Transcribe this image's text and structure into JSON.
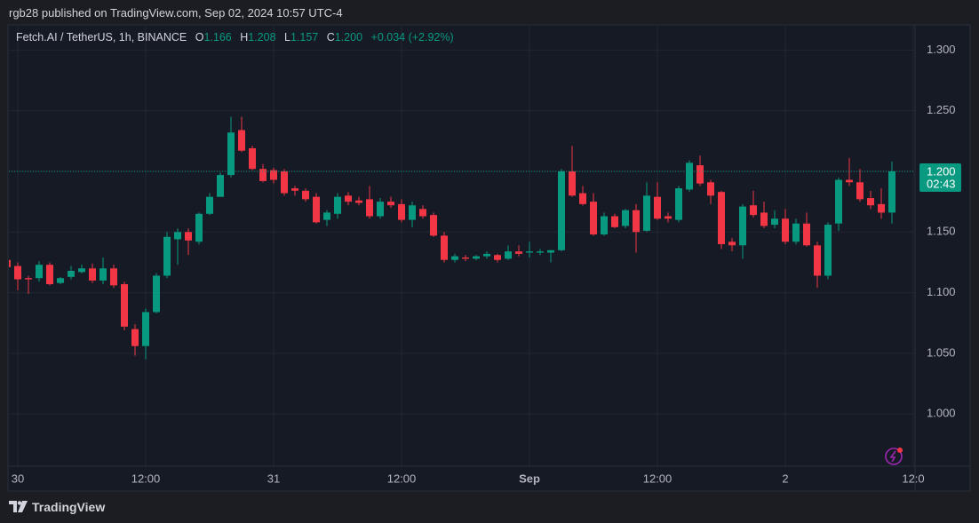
{
  "header": {
    "publisher": "rgb28 published on TradingView.com, Sep 02, 2024 10:57 UTC-4"
  },
  "legend": {
    "symbol": "Fetch.AI / TetherUS, 1h, BINANCE",
    "o_label": "O",
    "o": "1.166",
    "h_label": "H",
    "h": "1.208",
    "l_label": "L",
    "l": "1.157",
    "c_label": "C",
    "c": "1.200",
    "change": "+0.034 (+2.92%)"
  },
  "footer": {
    "brand": "TradingView"
  },
  "chart_data": {
    "type": "candlestick",
    "up_color": "#089981",
    "down_color": "#f23645",
    "grid": true,
    "categories": [
      null,
      "30",
      null,
      null,
      null,
      null,
      null,
      null,
      null,
      null,
      null,
      null,
      null,
      "12:00",
      null,
      null,
      null,
      null,
      null,
      null,
      null,
      null,
      null,
      null,
      null,
      "31",
      null,
      null,
      null,
      null,
      null,
      null,
      null,
      null,
      null,
      null,
      null,
      "12:00",
      null,
      null,
      null,
      null,
      null,
      null,
      null,
      null,
      null,
      null,
      null,
      "Sep",
      null,
      null,
      null,
      null,
      null,
      null,
      null,
      null,
      null,
      null,
      null,
      "12:00",
      null,
      null,
      null,
      null,
      null,
      null,
      null,
      null,
      null,
      null,
      null,
      "2",
      null,
      null,
      null,
      null,
      null,
      null,
      null,
      null,
      null,
      null,
      null,
      "12:0"
    ],
    "open": [
      1.127,
      1.122,
      1.112,
      1.112,
      1.123,
      1.108,
      1.113,
      1.117,
      1.12,
      1.11,
      1.12,
      1.107,
      1.07,
      1.056,
      1.084,
      1.114,
      1.144,
      1.15,
      1.142,
      1.165,
      1.179,
      1.197,
      1.234,
      1.219,
      1.202,
      1.201,
      1.2,
      1.186,
      1.184,
      1.179,
      1.16,
      1.165,
      1.18,
      1.176,
      1.177,
      1.163,
      1.175,
      1.173,
      1.16,
      1.169,
      1.164,
      1.147,
      1.127,
      1.129,
      1.128,
      1.13,
      1.131,
      1.128,
      1.134,
      1.133,
      1.133,
      1.133,
      1.135,
      1.2,
      1.182,
      1.175,
      1.148,
      1.163,
      1.155,
      1.168,
      1.151,
      1.179,
      1.163,
      1.16,
      1.185,
      1.205,
      1.191,
      1.183,
      1.142,
      1.139,
      1.172,
      1.166,
      1.156,
      1.161,
      1.142,
      1.157,
      1.139,
      1.114,
      1.157,
      1.193,
      1.191,
      1.178,
      1.173,
      1.166,
      null,
      null
    ],
    "high": [
      1.13,
      1.125,
      1.114,
      1.126,
      1.125,
      1.113,
      1.122,
      1.123,
      1.124,
      1.129,
      1.123,
      1.109,
      1.074,
      1.087,
      1.116,
      1.15,
      1.153,
      1.153,
      1.166,
      1.182,
      1.199,
      1.245,
      1.245,
      1.221,
      1.206,
      1.203,
      1.202,
      1.188,
      1.186,
      1.182,
      1.168,
      1.182,
      1.183,
      1.179,
      1.188,
      1.178,
      1.179,
      1.177,
      1.175,
      1.172,
      1.166,
      1.15,
      1.132,
      1.131,
      1.131,
      1.134,
      1.132,
      1.139,
      1.139,
      1.142,
      1.136,
      1.135,
      1.202,
      1.221,
      1.188,
      1.182,
      1.166,
      1.165,
      1.169,
      1.173,
      1.191,
      1.191,
      1.166,
      1.188,
      1.209,
      1.213,
      1.193,
      1.184,
      1.145,
      1.173,
      1.184,
      1.175,
      1.168,
      1.169,
      1.161,
      1.166,
      1.142,
      1.158,
      1.195,
      1.211,
      1.202,
      1.184,
      1.186,
      1.208,
      null,
      null
    ],
    "low": [
      1.118,
      1.102,
      1.099,
      1.109,
      1.106,
      1.107,
      1.111,
      1.116,
      1.108,
      1.107,
      1.104,
      1.069,
      1.048,
      1.045,
      1.083,
      1.112,
      1.123,
      1.131,
      1.14,
      1.164,
      1.179,
      1.195,
      1.216,
      1.201,
      1.191,
      1.19,
      1.18,
      1.18,
      1.175,
      1.157,
      1.155,
      1.161,
      1.172,
      1.172,
      1.161,
      1.161,
      1.17,
      1.158,
      1.154,
      1.161,
      1.146,
      1.125,
      1.125,
      1.126,
      1.127,
      1.128,
      1.125,
      1.127,
      1.13,
      1.129,
      1.131,
      1.125,
      1.134,
      1.179,
      1.172,
      1.147,
      1.147,
      1.153,
      1.153,
      1.133,
      1.15,
      1.16,
      1.158,
      1.158,
      1.183,
      1.188,
      1.173,
      1.136,
      1.134,
      1.128,
      1.162,
      1.153,
      1.153,
      1.14,
      1.14,
      1.138,
      1.104,
      1.111,
      1.151,
      1.188,
      1.175,
      1.169,
      1.161,
      1.157,
      null,
      null
    ],
    "close": [
      1.121,
      1.111,
      1.111,
      1.123,
      1.107,
      1.112,
      1.118,
      1.12,
      1.11,
      1.12,
      1.106,
      1.072,
      1.056,
      1.084,
      1.114,
      1.146,
      1.15,
      1.143,
      1.165,
      1.179,
      1.197,
      1.232,
      1.217,
      1.202,
      1.192,
      1.193,
      1.182,
      1.184,
      1.177,
      1.158,
      1.166,
      1.179,
      1.175,
      1.174,
      1.163,
      1.175,
      1.172,
      1.16,
      1.172,
      1.163,
      1.147,
      1.127,
      1.13,
      1.128,
      1.13,
      1.132,
      1.127,
      1.134,
      1.132,
      1.134,
      1.134,
      1.135,
      1.2,
      1.18,
      1.173,
      1.148,
      1.163,
      1.154,
      1.168,
      1.15,
      1.18,
      1.161,
      1.161,
      1.186,
      1.207,
      1.19,
      1.18,
      1.14,
      1.139,
      1.171,
      1.164,
      1.155,
      1.161,
      1.142,
      1.157,
      1.139,
      1.114,
      1.156,
      1.193,
      1.191,
      1.177,
      1.172,
      1.166,
      1.2,
      null,
      null
    ],
    "ylim": [
      0.957,
      1.32
    ],
    "yticks": [
      {
        "value": 1.0,
        "label": "1.000"
      },
      {
        "value": 1.05,
        "label": "1.050"
      },
      {
        "value": 1.1,
        "label": "1.100"
      },
      {
        "value": 1.15,
        "label": "1.150"
      },
      {
        "value": 1.2,
        "label": "1.200"
      },
      {
        "value": 1.25,
        "label": "1.250"
      },
      {
        "value": 1.3,
        "label": "1.300"
      }
    ],
    "last_price": {
      "value": 1.2,
      "label": "1.200"
    },
    "countdown": "02:43"
  }
}
